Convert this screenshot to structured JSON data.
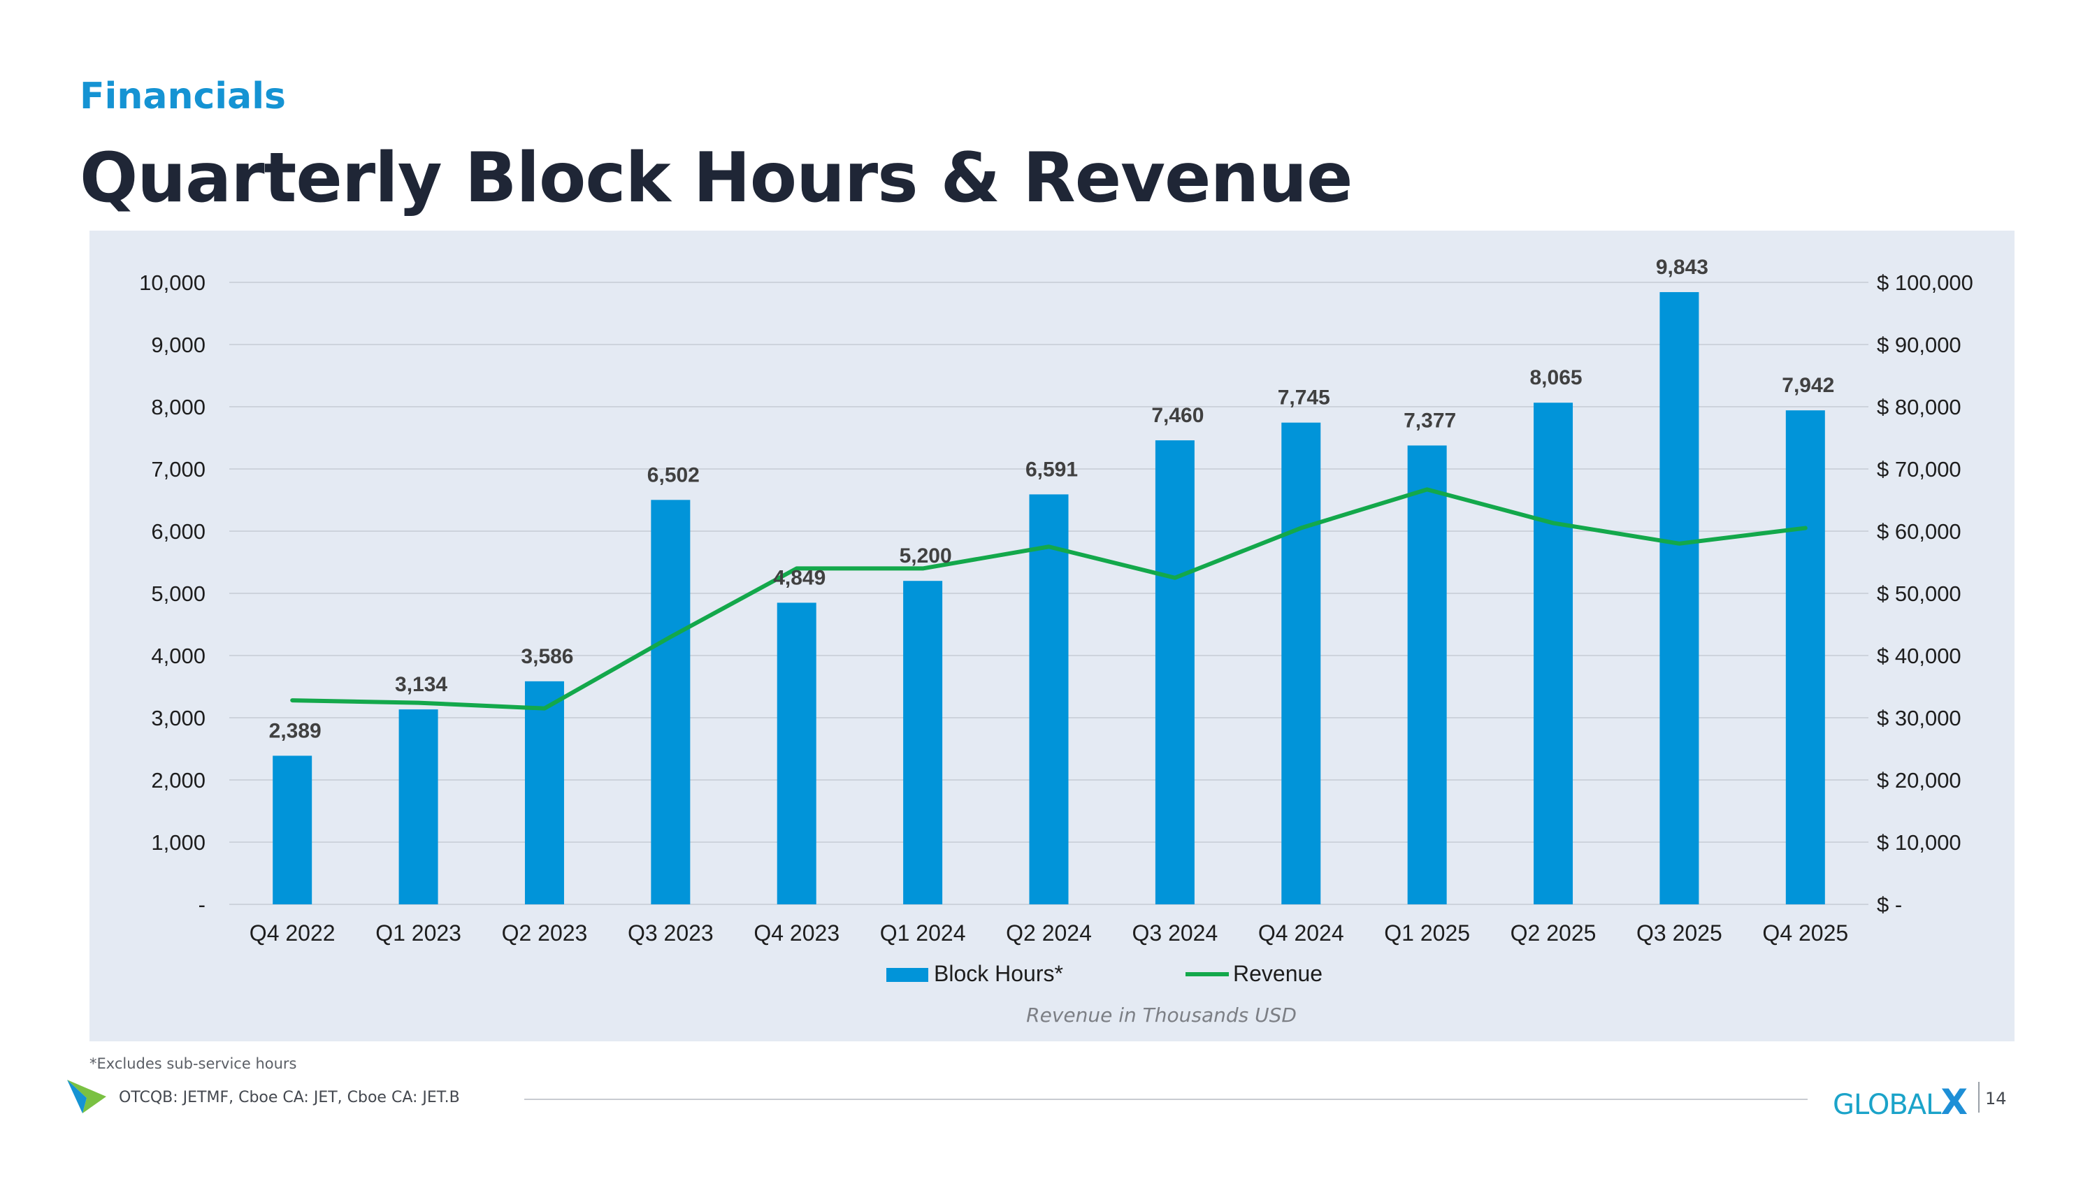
{
  "header": {
    "kicker": "Financials",
    "title": "Quarterly Block Hours & Revenue"
  },
  "chart_data": {
    "type": "bar",
    "title": "Quarterly Block Hours & Revenue",
    "categories": [
      "Q4 2022",
      "Q1 2023",
      "Q2 2023",
      "Q3 2023",
      "Q4 2023",
      "Q1 2024",
      "Q2 2024",
      "Q3 2024",
      "Q4 2024",
      "Q1 2025",
      "Q2 2025",
      "Q3 2025",
      "Q4 2025"
    ],
    "series": [
      {
        "name": "Block Hours*",
        "type": "bar",
        "axis": "left",
        "color": "#0194d9",
        "values": [
          2389,
          3134,
          3586,
          6502,
          4849,
          5200,
          6591,
          7460,
          7745,
          7377,
          8065,
          9843,
          7942
        ],
        "labels": [
          "2,389",
          "3,134",
          "3,586",
          "6,502",
          "4,849",
          "5,200",
          "6,591",
          "7,460",
          "7,745",
          "7,377",
          "8,065",
          "9,843",
          "7,942"
        ]
      },
      {
        "name": "Revenue",
        "type": "line",
        "axis": "right",
        "color": "#13a84b",
        "values": [
          32800,
          32400,
          31500,
          43000,
          54000,
          54000,
          57500,
          52500,
          60500,
          66700,
          61300,
          58000,
          60500
        ]
      }
    ],
    "y_left": {
      "range": [
        0,
        10000
      ],
      "ticks": [
        0,
        1000,
        2000,
        3000,
        4000,
        5000,
        6000,
        7000,
        8000,
        9000,
        10000
      ],
      "tick_labels": [
        "-",
        "1,000",
        "2,000",
        "3,000",
        "4,000",
        "5,000",
        "6,000",
        "7,000",
        "8,000",
        "9,000",
        "10,000"
      ]
    },
    "y_right": {
      "range": [
        0,
        100000
      ],
      "ticks": [
        0,
        10000,
        20000,
        30000,
        40000,
        50000,
        60000,
        70000,
        80000,
        90000,
        100000
      ],
      "tick_labels": [
        "$ -",
        "$ 10,000",
        "$ 20,000",
        "$ 30,000",
        "$ 40,000",
        "$ 50,000",
        "$ 60,000",
        "$ 70,000",
        "$ 80,000",
        "$ 90,000",
        "$ 100,000"
      ]
    },
    "grid": true,
    "legend": "bottom-center",
    "annotation": "Revenue in Thousands USD"
  },
  "footnote": "*Excludes sub-service hours",
  "footer": {
    "tickers": "OTCQB: JETMF, Cboe CA: JET, Cboe CA: JET.B",
    "brand_main": "GLOBAL",
    "brand_x": "X",
    "page_number": "14"
  },
  "colors": {
    "accent": "#1593d3",
    "title": "#1f2636",
    "panel": "#e4eaf3",
    "bar": "#0194d9",
    "line": "#13a84b"
  }
}
